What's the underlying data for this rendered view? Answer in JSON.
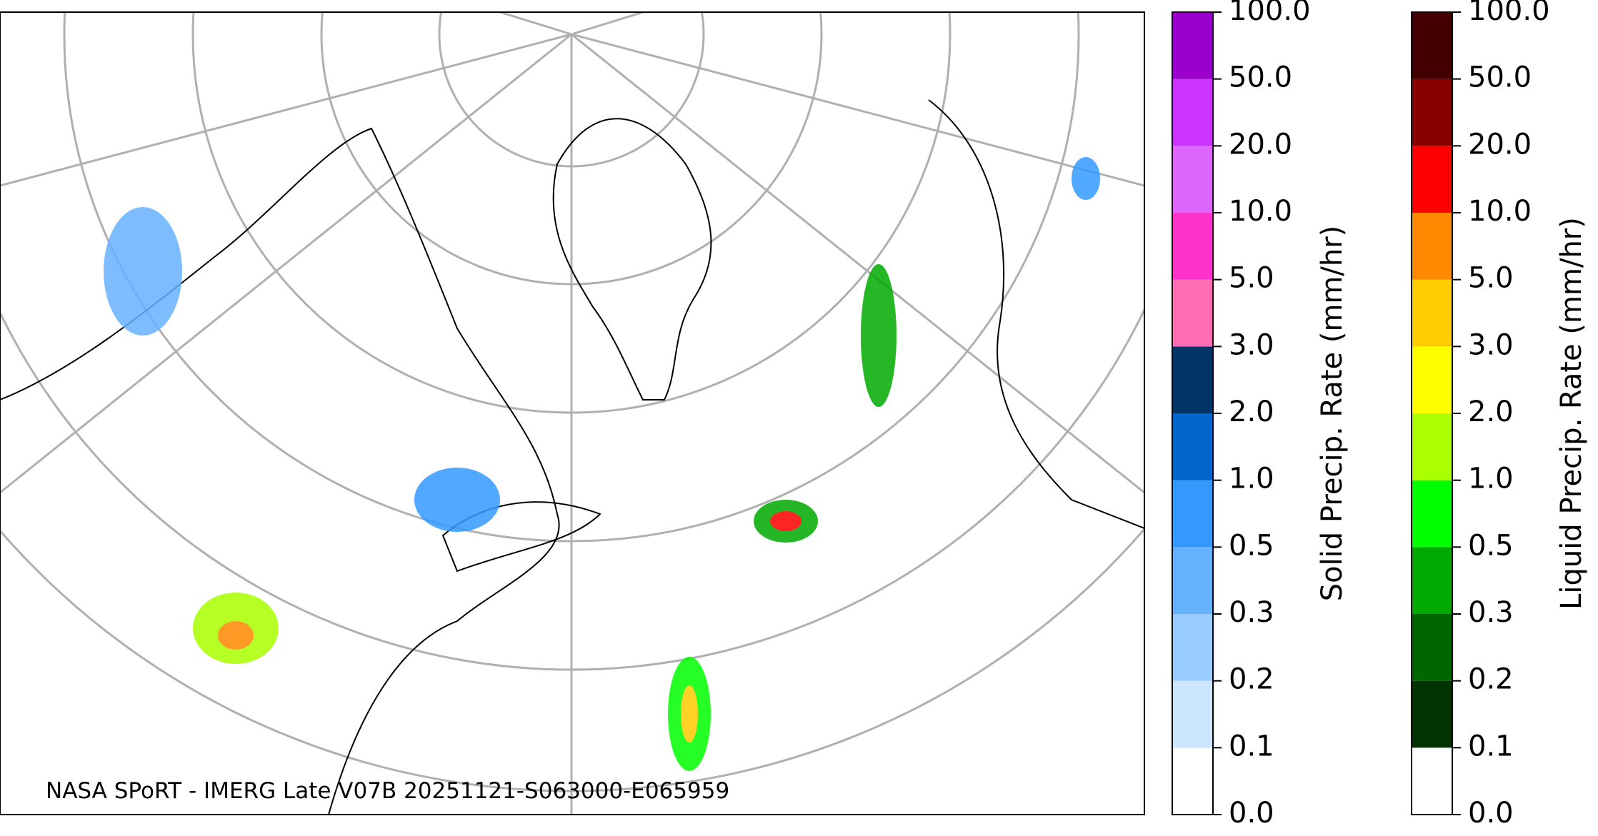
{
  "map": {
    "credit": "NASA SPoRT - IMERG Late V07B 20251121-S063000-E065959"
  },
  "colorbars": [
    {
      "label": "Solid Precip. Rate (mm/hr)",
      "ticks": [
        {
          "value": 0,
          "label": "0.0"
        },
        {
          "value": 0.1,
          "label": "0.1"
        },
        {
          "value": 0.2,
          "label": "0.2"
        },
        {
          "value": 0.3,
          "label": "0.3"
        },
        {
          "value": 0.5,
          "label": "0.5"
        },
        {
          "value": 1,
          "label": "1.0"
        },
        {
          "value": 2,
          "label": "2.0"
        },
        {
          "value": 3,
          "label": "3.0"
        },
        {
          "value": 5,
          "label": "5.0"
        },
        {
          "value": 10,
          "label": "10.0"
        },
        {
          "value": 20,
          "label": "20.0"
        },
        {
          "value": 50,
          "label": "50.0"
        },
        {
          "value": 100,
          "label": "100.0"
        }
      ],
      "colors": [
        "#ffffff",
        "#cce6ff",
        "#99ccff",
        "#66b2ff",
        "#3399ff",
        "#0066cc",
        "#003366",
        "#ff6eb4",
        "#ff33cc",
        "#dd66ff",
        "#cc33ff",
        "#9900cc"
      ]
    },
    {
      "label": "Liquid Precip. Rate (mm/hr)",
      "ticks": [
        {
          "value": 0,
          "label": "0.0"
        },
        {
          "value": 0.1,
          "label": "0.1"
        },
        {
          "value": 0.2,
          "label": "0.2"
        },
        {
          "value": 0.3,
          "label": "0.3"
        },
        {
          "value": 0.5,
          "label": "0.5"
        },
        {
          "value": 1,
          "label": "1.0"
        },
        {
          "value": 2,
          "label": "2.0"
        },
        {
          "value": 3,
          "label": "3.0"
        },
        {
          "value": 5,
          "label": "5.0"
        },
        {
          "value": 10,
          "label": "10.0"
        },
        {
          "value": 20,
          "label": "20.0"
        },
        {
          "value": 50,
          "label": "50.0"
        },
        {
          "value": 100,
          "label": "100.0"
        }
      ],
      "colors": [
        "#ffffff",
        "#003300",
        "#006600",
        "#00aa00",
        "#00ff00",
        "#aaff00",
        "#ffff00",
        "#ffcc00",
        "#ff8800",
        "#ff0000",
        "#880000",
        "#440000"
      ]
    }
  ]
}
